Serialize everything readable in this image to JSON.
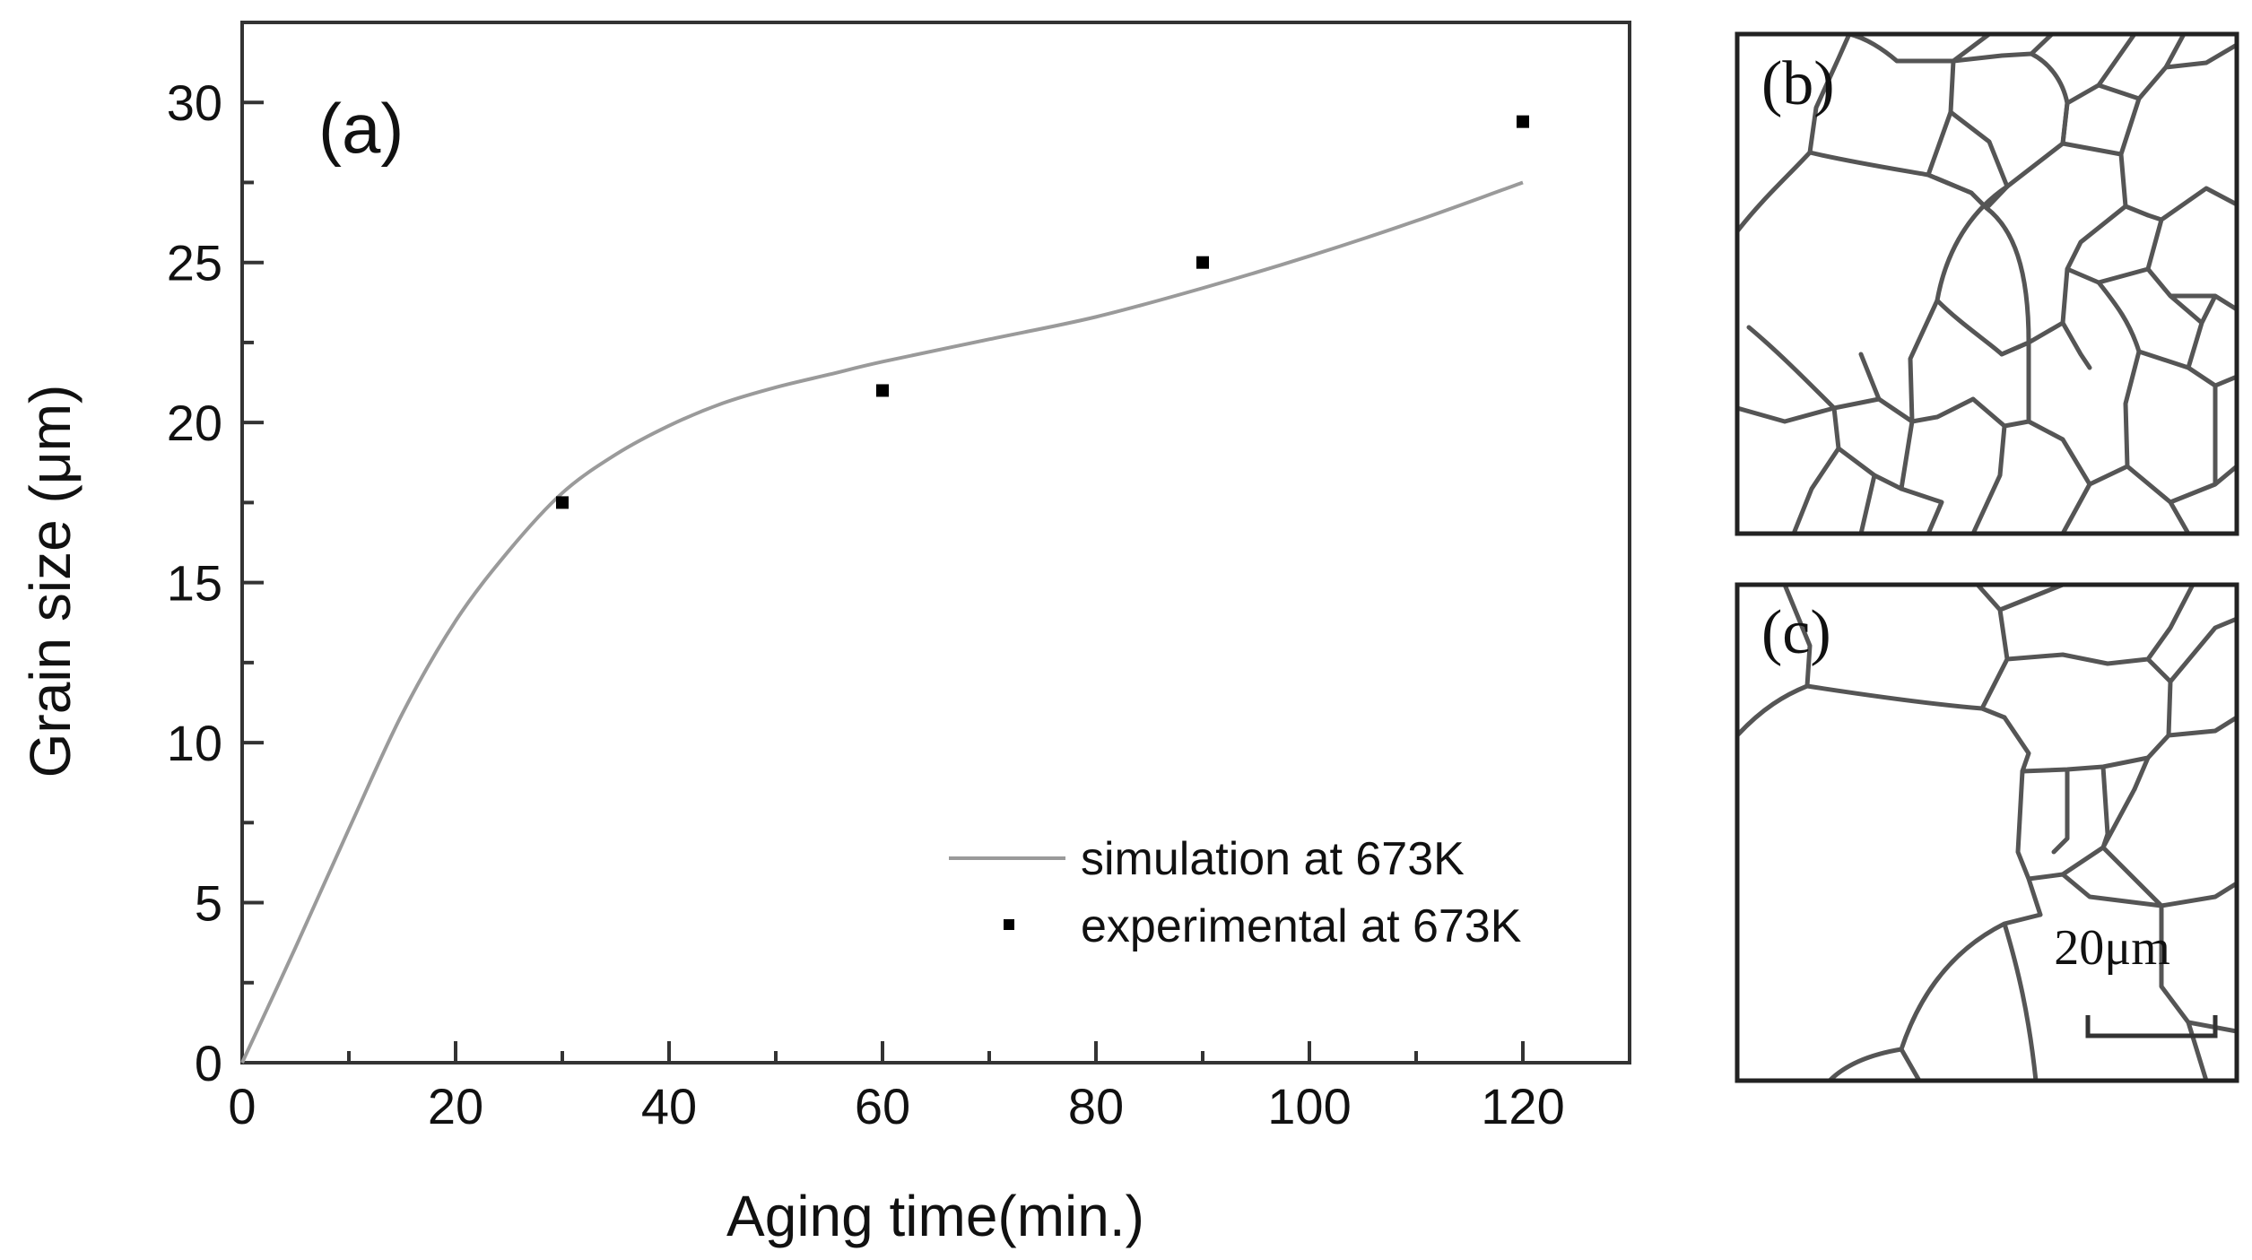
{
  "chart_data": {
    "type": "scatter",
    "panel_label": "(a)",
    "xlabel": "Aging time(min.)",
    "ylabel": "Grain size (μm)",
    "xlim": [
      0,
      130
    ],
    "ylim": [
      0,
      32.5
    ],
    "x_ticks": [
      0,
      20,
      40,
      60,
      80,
      100,
      120
    ],
    "y_ticks": [
      0,
      5,
      10,
      15,
      20,
      25,
      30
    ],
    "series": [
      {
        "name": "simulation at 673K",
        "style": "line",
        "color": "#9a9a9a",
        "x": [
          0,
          5,
          10,
          15,
          20,
          25,
          30,
          35,
          40,
          45,
          50,
          55,
          60,
          70,
          80,
          90,
          100,
          110,
          120
        ],
        "y": [
          0,
          3.6,
          7.3,
          10.9,
          13.8,
          16.0,
          17.8,
          19.0,
          19.9,
          20.6,
          21.1,
          21.5,
          21.9,
          22.6,
          23.3,
          24.2,
          25.2,
          26.3,
          27.5
        ]
      },
      {
        "name": "experimental at 673K",
        "style": "points",
        "color": "#000000",
        "x": [
          30,
          60,
          90,
          120
        ],
        "y": [
          17.5,
          21.0,
          25.0,
          29.4
        ]
      }
    ],
    "legend_position": "bottom-right"
  },
  "micrographs": [
    {
      "label": "(b)"
    },
    {
      "label": "(c)",
      "scale_bar_label": "20μm"
    }
  ]
}
